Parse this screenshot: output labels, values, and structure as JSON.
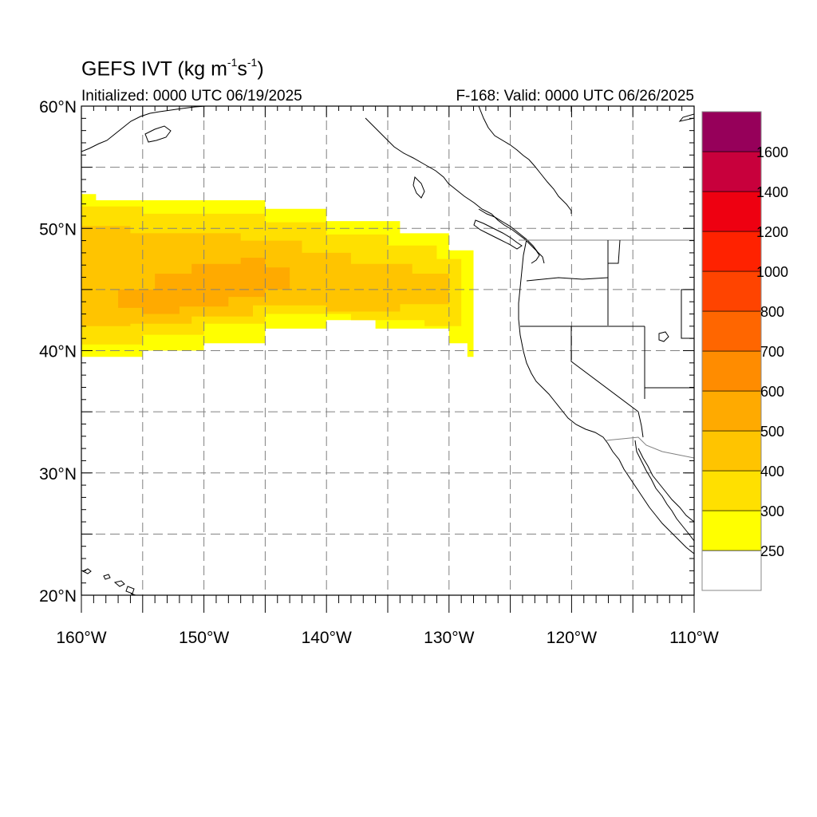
{
  "title": {
    "main": "GEFS IVT (kg m",
    "sup1": "-1",
    "mid": "s",
    "sup2": "-1",
    "end": ")"
  },
  "subtitle": {
    "left": "Initialized: 0000 UTC 06/19/2025",
    "right": "F-168: Valid: 0000 UTC 06/26/2025"
  },
  "map": {
    "lon_range": [
      -160,
      -110
    ],
    "lat_range": [
      20,
      60
    ],
    "lat_ticks": [
      {
        "value": 60,
        "label": "60°N"
      },
      {
        "value": 50,
        "label": "50°N"
      },
      {
        "value": 40,
        "label": "40°N"
      },
      {
        "value": 30,
        "label": "30°N"
      },
      {
        "value": 20,
        "label": "20°N"
      }
    ],
    "lon_ticks": [
      {
        "value": -160,
        "label": "160°W"
      },
      {
        "value": -150,
        "label": "150°W"
      },
      {
        "value": -140,
        "label": "140°W"
      },
      {
        "value": -130,
        "label": "130°W"
      },
      {
        "value": -120,
        "label": "120°W"
      },
      {
        "value": -110,
        "label": "110°W"
      }
    ],
    "gridline_lons": [
      -155,
      -150,
      -145,
      -140,
      -135,
      -130,
      -125,
      -120,
      -115
    ],
    "gridline_lats": [
      25,
      30,
      35,
      40,
      45,
      50,
      55
    ],
    "ivt_field": [
      {
        "level": 250,
        "color": "#ffff00",
        "polygon": [
          [
            -160,
            39.5
          ],
          [
            -160,
            52.8
          ],
          [
            -158.8,
            52.8
          ],
          [
            -158.8,
            52.3
          ],
          [
            -145,
            52.3
          ],
          [
            -145,
            51.6
          ],
          [
            -140,
            51.6
          ],
          [
            -140,
            50.6
          ],
          [
            -134,
            50.6
          ],
          [
            -134,
            49.6
          ],
          [
            -130,
            49.6
          ],
          [
            -130,
            48.2
          ],
          [
            -128,
            48.2
          ],
          [
            -128,
            39.5
          ],
          [
            -128.5,
            39.5
          ],
          [
            -128.5,
            40.6
          ],
          [
            -130,
            40.6
          ],
          [
            -130,
            41.8
          ],
          [
            -136,
            41.8
          ],
          [
            -136,
            42.5
          ],
          [
            -140,
            42.5
          ],
          [
            -140,
            41.8
          ],
          [
            -145,
            41.8
          ],
          [
            -145,
            40.6
          ],
          [
            -150,
            40.6
          ],
          [
            -150,
            40.0
          ],
          [
            -155,
            40.0
          ],
          [
            -155,
            39.5
          ]
        ]
      },
      {
        "level": 300,
        "color": "#ffe000",
        "polygon": [
          [
            -160,
            40.5
          ],
          [
            -160,
            51.8
          ],
          [
            -155,
            51.8
          ],
          [
            -155,
            51.2
          ],
          [
            -145,
            51.2
          ],
          [
            -145,
            50.5
          ],
          [
            -140,
            50.5
          ],
          [
            -140,
            49.5
          ],
          [
            -135,
            49.5
          ],
          [
            -135,
            48.6
          ],
          [
            -131,
            48.6
          ],
          [
            -131,
            47.5
          ],
          [
            -129,
            47.5
          ],
          [
            -129,
            42.0
          ],
          [
            -132,
            42.0
          ],
          [
            -132,
            42.5
          ],
          [
            -138,
            42.5
          ],
          [
            -138,
            43.0
          ],
          [
            -145,
            43.0
          ],
          [
            -145,
            42.2
          ],
          [
            -150,
            42.2
          ],
          [
            -150,
            41.3
          ],
          [
            -155,
            41.3
          ],
          [
            -155,
            40.5
          ]
        ]
      },
      {
        "level": 400,
        "color": "#ffc400",
        "polygon": [
          [
            -160,
            42.0
          ],
          [
            -160,
            50.2
          ],
          [
            -156,
            50.2
          ],
          [
            -156,
            49.6
          ],
          [
            -147,
            49.6
          ],
          [
            -147,
            49.0
          ],
          [
            -142,
            49.0
          ],
          [
            -142,
            48.0
          ],
          [
            -138,
            48.0
          ],
          [
            -138,
            47.1
          ],
          [
            -133,
            47.1
          ],
          [
            -133,
            46.3
          ],
          [
            -130,
            46.3
          ],
          [
            -130,
            43.8
          ],
          [
            -134,
            43.8
          ],
          [
            -134,
            43.2
          ],
          [
            -140,
            43.2
          ],
          [
            -140,
            43.7
          ],
          [
            -146,
            43.7
          ],
          [
            -146,
            42.8
          ],
          [
            -151,
            42.8
          ],
          [
            -151,
            42.2
          ],
          [
            -156,
            42.2
          ],
          [
            -156,
            42.0
          ]
        ]
      },
      {
        "level": 500,
        "color": "#ffaa00",
        "polygon": [
          [
            -157,
            43.5
          ],
          [
            -157,
            45.0
          ],
          [
            -154,
            45.0
          ],
          [
            -154,
            46.3
          ],
          [
            -151,
            46.3
          ],
          [
            -151,
            47.1
          ],
          [
            -147,
            47.1
          ],
          [
            -147,
            47.6
          ],
          [
            -145,
            47.6
          ],
          [
            -145,
            46.8
          ],
          [
            -143,
            46.8
          ],
          [
            -143,
            45.0
          ],
          [
            -145,
            45.0
          ],
          [
            -145,
            44.4
          ],
          [
            -148,
            44.4
          ],
          [
            -148,
            43.6
          ],
          [
            -152,
            43.6
          ],
          [
            -152,
            43.0
          ],
          [
            -155,
            43.0
          ],
          [
            -155,
            43.5
          ]
        ]
      }
    ],
    "coastline_color": "#000000",
    "gridline_color": "#808080"
  },
  "colorbar": {
    "colors": [
      "#ffffff",
      "#ffff00",
      "#ffe000",
      "#ffc400",
      "#ffaa00",
      "#ff8c00",
      "#ff6600",
      "#ff4400",
      "#ff2200",
      "#ee0011",
      "#c8003c",
      "#96005a",
      "#780078",
      "#5a0096"
    ],
    "labels": [
      "250",
      "300",
      "400",
      "500",
      "600",
      "700",
      "800",
      "1000",
      "1200",
      "1400",
      "1600"
    ]
  }
}
